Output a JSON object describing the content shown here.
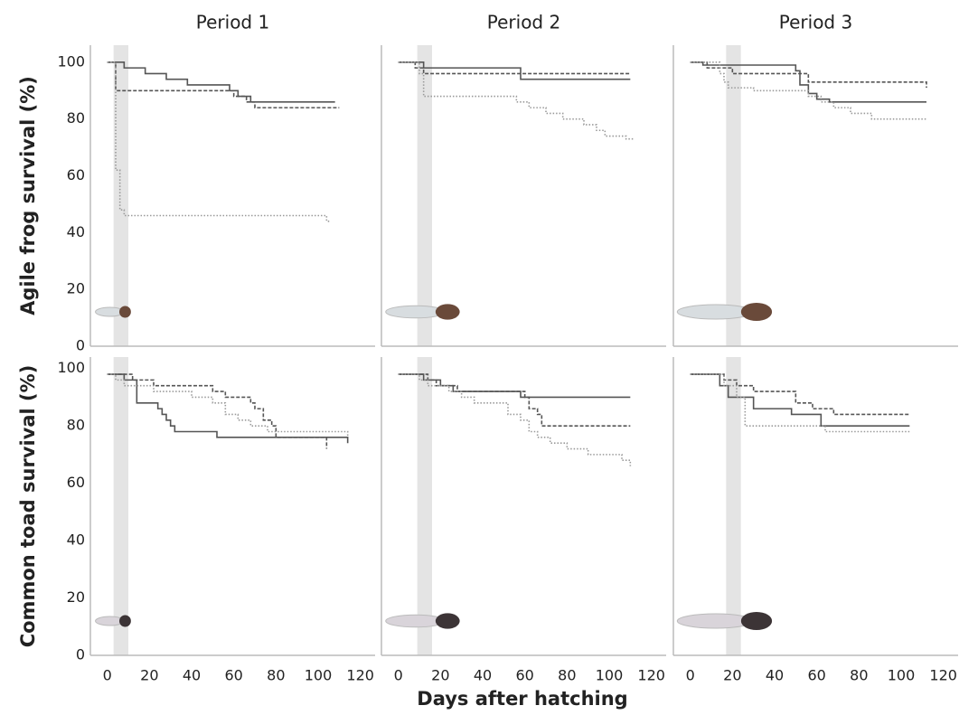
{
  "chart_data": [
    {
      "type": "line",
      "title": "Period 1",
      "ylabel": "Agile frog survival (%)",
      "drawstyle": "steps-post",
      "xlim": [
        -8,
        127
      ],
      "ylim": [
        0,
        106
      ],
      "yticks": [
        0,
        20,
        40,
        60,
        80,
        100
      ],
      "shade": [
        3,
        10
      ],
      "shade_color": "#e4e4e4",
      "series": [
        {
          "color": "#555555",
          "style": "solid",
          "x": [
            0,
            8,
            18,
            28,
            38,
            58,
            62,
            68,
            108
          ],
          "values": [
            100,
            98,
            96,
            94,
            92,
            90,
            88,
            86,
            86
          ]
        },
        {
          "color": "#555555",
          "style": "dashed",
          "x": [
            0,
            4,
            60,
            66,
            70,
            110
          ],
          "values": [
            100,
            90,
            88,
            86,
            84,
            84
          ]
        },
        {
          "color": "#999999",
          "style": "dotted",
          "x": [
            0,
            4,
            6,
            8,
            104,
            106
          ],
          "values": [
            100,
            62,
            48,
            46,
            44,
            44
          ]
        }
      ]
    },
    {
      "type": "line",
      "title": "Period 2",
      "drawstyle": "steps-post",
      "xlim": [
        -8,
        127
      ],
      "ylim": [
        0,
        106
      ],
      "shade": [
        9,
        16
      ],
      "shade_color": "#e4e4e4",
      "series": [
        {
          "color": "#555555",
          "style": "solid",
          "x": [
            0,
            12,
            58,
            110
          ],
          "values": [
            100,
            98,
            94,
            94
          ]
        },
        {
          "color": "#555555",
          "style": "dashed",
          "x": [
            0,
            8,
            12,
            110
          ],
          "values": [
            100,
            98,
            96,
            96
          ]
        },
        {
          "color": "#999999",
          "style": "dotted",
          "x": [
            0,
            10,
            12,
            56,
            62,
            70,
            78,
            88,
            94,
            98,
            108,
            112
          ],
          "values": [
            100,
            96,
            88,
            86,
            84,
            82,
            80,
            78,
            76,
            74,
            73,
            73
          ]
        }
      ]
    },
    {
      "type": "line",
      "title": "Period 3",
      "drawstyle": "steps-post",
      "xlim": [
        -8,
        127
      ],
      "ylim": [
        0,
        106
      ],
      "shade": [
        17,
        24
      ],
      "shade_color": "#e4e4e4",
      "series": [
        {
          "color": "#555555",
          "style": "solid",
          "x": [
            0,
            6,
            50,
            52,
            56,
            60,
            66,
            112
          ],
          "values": [
            100,
            99,
            97,
            92,
            89,
            87,
            86,
            86
          ]
        },
        {
          "color": "#555555",
          "style": "dashed",
          "x": [
            0,
            8,
            20,
            56,
            112
          ],
          "values": [
            100,
            98,
            96,
            93,
            91
          ]
        },
        {
          "color": "#999999",
          "style": "dotted",
          "x": [
            0,
            14,
            16,
            18,
            30,
            52,
            56,
            62,
            68,
            76,
            86,
            112
          ],
          "values": [
            100,
            96,
            93,
            91,
            90,
            90,
            88,
            86,
            84,
            82,
            80,
            80
          ]
        }
      ]
    },
    {
      "type": "line",
      "ylabel": "Common toad survival (%)",
      "drawstyle": "steps-post",
      "xlim": [
        -8,
        127
      ],
      "ylim": [
        0,
        104
      ],
      "yticks": [
        0,
        20,
        40,
        60,
        80,
        100
      ],
      "xticks": [
        0,
        20,
        40,
        60,
        80,
        100,
        120
      ],
      "shade": [
        3,
        10
      ],
      "shade_color": "#e4e4e4",
      "series": [
        {
          "color": "#555555",
          "style": "solid",
          "x": [
            0,
            8,
            14,
            24,
            26,
            28,
            30,
            32,
            52,
            114
          ],
          "values": [
            98,
            96,
            88,
            86,
            84,
            82,
            80,
            78,
            76,
            74
          ]
        },
        {
          "color": "#555555",
          "style": "dashed",
          "x": [
            0,
            12,
            22,
            50,
            56,
            68,
            70,
            74,
            78,
            80,
            104
          ],
          "values": [
            98,
            96,
            94,
            92,
            90,
            88,
            86,
            82,
            80,
            76,
            72
          ]
        },
        {
          "color": "#999999",
          "style": "dotted",
          "x": [
            0,
            4,
            8,
            22,
            40,
            50,
            56,
            62,
            68,
            76,
            114
          ],
          "values": [
            98,
            96,
            94,
            92,
            90,
            88,
            84,
            82,
            80,
            78,
            76
          ]
        }
      ]
    },
    {
      "type": "line",
      "xlabel": "Days after hatching",
      "drawstyle": "steps-post",
      "xlim": [
        -8,
        127
      ],
      "ylim": [
        0,
        104
      ],
      "xticks": [
        0,
        20,
        40,
        60,
        80,
        100,
        120
      ],
      "shade": [
        9,
        16
      ],
      "shade_color": "#e4e4e4",
      "series": [
        {
          "color": "#555555",
          "style": "solid",
          "x": [
            0,
            12,
            20,
            26,
            58,
            110
          ],
          "values": [
            98,
            96,
            94,
            92,
            90,
            90
          ]
        },
        {
          "color": "#555555",
          "style": "dashed",
          "x": [
            0,
            14,
            18,
            28,
            60,
            62,
            66,
            68,
            110
          ],
          "values": [
            98,
            96,
            94,
            92,
            90,
            86,
            84,
            80,
            80
          ]
        },
        {
          "color": "#999999",
          "style": "dotted",
          "x": [
            0,
            8,
            10,
            14,
            24,
            30,
            36,
            52,
            58,
            62,
            66,
            72,
            80,
            90,
            106,
            110
          ],
          "values": [
            98,
            98,
            96,
            94,
            92,
            90,
            88,
            84,
            82,
            78,
            76,
            74,
            72,
            70,
            68,
            66
          ]
        }
      ]
    },
    {
      "type": "line",
      "drawstyle": "steps-post",
      "xlim": [
        -8,
        127
      ],
      "ylim": [
        0,
        104
      ],
      "xticks": [
        0,
        20,
        40,
        60,
        80,
        100,
        120
      ],
      "shade": [
        17,
        24
      ],
      "shade_color": "#e4e4e4",
      "series": [
        {
          "color": "#555555",
          "style": "solid",
          "x": [
            0,
            14,
            18,
            30,
            48,
            62,
            104
          ],
          "values": [
            98,
            94,
            90,
            86,
            84,
            80,
            80
          ]
        },
        {
          "color": "#555555",
          "style": "dashed",
          "x": [
            0,
            14,
            16,
            22,
            30,
            50,
            58,
            68,
            104
          ],
          "values": [
            98,
            98,
            96,
            94,
            92,
            88,
            86,
            84,
            84
          ]
        },
        {
          "color": "#999999",
          "style": "dotted",
          "x": [
            0,
            14,
            16,
            22,
            26,
            64,
            104
          ],
          "values": [
            98,
            98,
            94,
            90,
            80,
            78,
            78
          ]
        }
      ]
    }
  ]
}
